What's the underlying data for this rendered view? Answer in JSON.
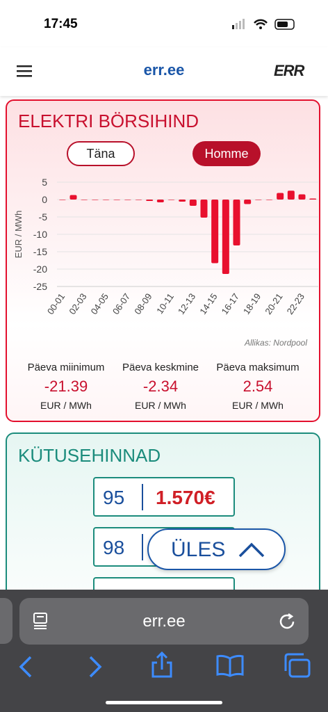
{
  "status_bar": {
    "time": "17:45"
  },
  "header": {
    "site": "err.ee",
    "logo": "ERR"
  },
  "price_card": {
    "title": "ELEKTRI BÖRSIHIND",
    "tabs": [
      "Täna",
      "Homme"
    ],
    "source": "Allikas: Nordpool",
    "stats": [
      {
        "label": "Päeva miinimum",
        "value": "-21.39",
        "unit": "EUR / MWh"
      },
      {
        "label": "Päeva keskmine",
        "value": "-2.34",
        "unit": "EUR / MWh"
      },
      {
        "label": "Päeva maksimum",
        "value": "2.54",
        "unit": "EUR / MWh"
      }
    ]
  },
  "chart_data": {
    "type": "bar",
    "y_label": "EUR / MWh",
    "categories": [
      "00-01",
      null,
      "02-03",
      null,
      "04-05",
      null,
      "06-07",
      null,
      "08-09",
      null,
      "10-11",
      null,
      "12-13",
      null,
      "14-15",
      null,
      "16-17",
      null,
      "18-19",
      null,
      "20-21",
      null,
      "22-23",
      null
    ],
    "values": [
      0,
      1.3,
      -0.1,
      -0.1,
      -0.1,
      0,
      -0.1,
      0,
      -0.4,
      -0.8,
      0,
      -0.6,
      -1.8,
      -5.2,
      -18.3,
      -21.39,
      -13.2,
      -1.3,
      -0.1,
      0,
      1.9,
      2.54,
      1.5,
      0.3
    ],
    "color": "#e8102e",
    "ylim": [
      -25,
      5
    ],
    "yticks": [
      5,
      0,
      -5,
      -10,
      -15,
      -20,
      -25
    ],
    "grid": true
  },
  "fuel_card": {
    "title": "KÜTUSEHINNAD",
    "fuels": [
      {
        "grade": "95",
        "price": "1.570€"
      },
      {
        "grade": "98"
      }
    ]
  },
  "scroll_button": {
    "label": "ÜLES"
  },
  "browser": {
    "url": "err.ee"
  }
}
